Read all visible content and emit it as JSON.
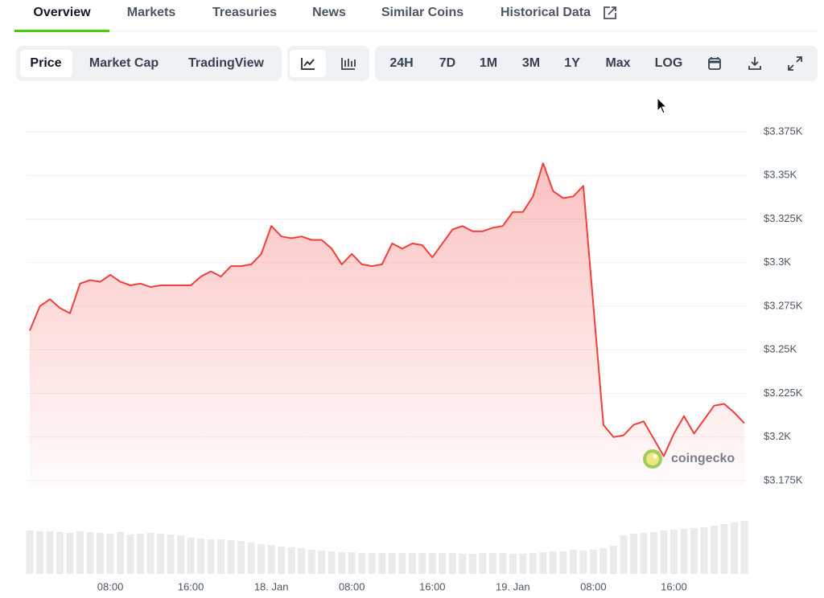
{
  "tabs": [
    "Overview",
    "Markets",
    "Treasuries",
    "News",
    "Similar Coins",
    "Historical Data"
  ],
  "active_tab": 0,
  "toolbar": {
    "views": [
      "Price",
      "Market Cap",
      "TradingView"
    ],
    "active_view": 0,
    "ranges": [
      "24H",
      "7D",
      "1M",
      "3M",
      "1Y",
      "Max",
      "LOG"
    ]
  },
  "watermark": "coingecko",
  "chart_data": {
    "type": "line",
    "x": [
      0,
      1,
      2,
      3,
      4,
      5,
      6,
      7,
      8,
      9,
      10,
      11,
      12,
      13,
      14,
      15,
      16,
      17,
      18,
      19,
      20,
      21,
      22,
      23,
      24,
      25,
      26,
      27,
      28,
      29,
      30,
      31,
      32,
      33,
      34,
      35,
      36,
      37,
      38,
      39,
      40,
      41,
      42,
      43,
      44,
      45,
      46,
      47,
      48,
      49,
      50,
      51,
      52,
      53,
      54,
      55,
      57,
      58,
      59,
      60,
      61,
      62,
      63,
      64,
      65,
      66,
      67,
      68,
      69,
      70,
      71
    ],
    "series": [
      {
        "color": "#f23f3a",
        "values": [
          3261,
          3275,
          3279,
          3274,
          3271,
          3288,
          3290,
          3289,
          3293,
          3289,
          3287,
          3288,
          3286,
          3287,
          3287,
          3287,
          3287,
          3292,
          3295,
          3292,
          3298,
          3298,
          3299,
          3305,
          3321,
          3315,
          3314,
          3315,
          3313,
          3313,
          3308,
          3299,
          3305,
          3299,
          3298,
          3299,
          3311,
          3308,
          3311,
          3310,
          3303,
          3311,
          3319,
          3321,
          3318,
          3318,
          3320,
          3321,
          3329,
          3329,
          3338,
          3357,
          3341,
          3337,
          3338,
          3344,
          3207,
          3200,
          3201,
          3207,
          3209,
          3199,
          3189,
          3202,
          3212,
          3202,
          3210,
          3218,
          3219,
          3214,
          3208
        ]
      }
    ],
    "xlim": [
      0,
      71
    ],
    "xticks": [
      {
        "value": 8,
        "label": "08:00"
      },
      {
        "value": 16,
        "label": "16:00"
      },
      {
        "value": 24,
        "label": "18. Jan"
      },
      {
        "value": 32,
        "label": "08:00"
      },
      {
        "value": 40,
        "label": "16:00"
      },
      {
        "value": 48,
        "label": "19. Jan"
      },
      {
        "value": 56,
        "label": "08:00"
      },
      {
        "value": 64,
        "label": "16:00"
      }
    ],
    "ylim": [
      3175,
      3375
    ],
    "yticks": [
      {
        "value": 3375,
        "label": "$3.375K"
      },
      {
        "value": 3350,
        "label": "$3.35K"
      },
      {
        "value": 3325,
        "label": "$3.325K"
      },
      {
        "value": 3300,
        "label": "$3.3K"
      },
      {
        "value": 3275,
        "label": "$3.275K"
      },
      {
        "value": 3250,
        "label": "$3.25K"
      },
      {
        "value": 3225,
        "label": "$3.225K"
      },
      {
        "value": 3200,
        "label": "$3.2K"
      },
      {
        "value": 3175,
        "label": "$3.175K"
      }
    ],
    "grid": true,
    "volume": {
      "type": "bar",
      "color": "#ebebeb",
      "x": [
        0,
        1,
        2,
        3,
        4,
        5,
        6,
        7,
        8,
        9,
        10,
        11,
        12,
        13,
        14,
        15,
        16,
        17,
        18,
        19,
        20,
        21,
        22,
        23,
        24,
        25,
        26,
        27,
        28,
        29,
        30,
        31,
        32,
        33,
        34,
        35,
        36,
        37,
        38,
        39,
        40,
        41,
        42,
        43,
        44,
        45,
        46,
        47,
        48,
        49,
        50,
        51,
        52,
        53,
        54,
        55,
        56,
        57,
        58,
        59,
        60,
        61,
        62,
        63,
        64,
        65,
        66,
        67,
        68,
        69,
        70,
        71
      ],
      "values": [
        54,
        53,
        53,
        52,
        51,
        53,
        52,
        51,
        50,
        52,
        49,
        50,
        51,
        50,
        49,
        48,
        45,
        44,
        43,
        43,
        42,
        41,
        39,
        37,
        36,
        34,
        33,
        32,
        30,
        29,
        28,
        27,
        27,
        26,
        26,
        26,
        26,
        26,
        26,
        26,
        26,
        26,
        26,
        25,
        25,
        26,
        26,
        26,
        25,
        25,
        26,
        27,
        28,
        28,
        30,
        29,
        30,
        32,
        35,
        48,
        50,
        51,
        52,
        54,
        55,
        56,
        57,
        58,
        60,
        62,
        64,
        66
      ]
    }
  }
}
